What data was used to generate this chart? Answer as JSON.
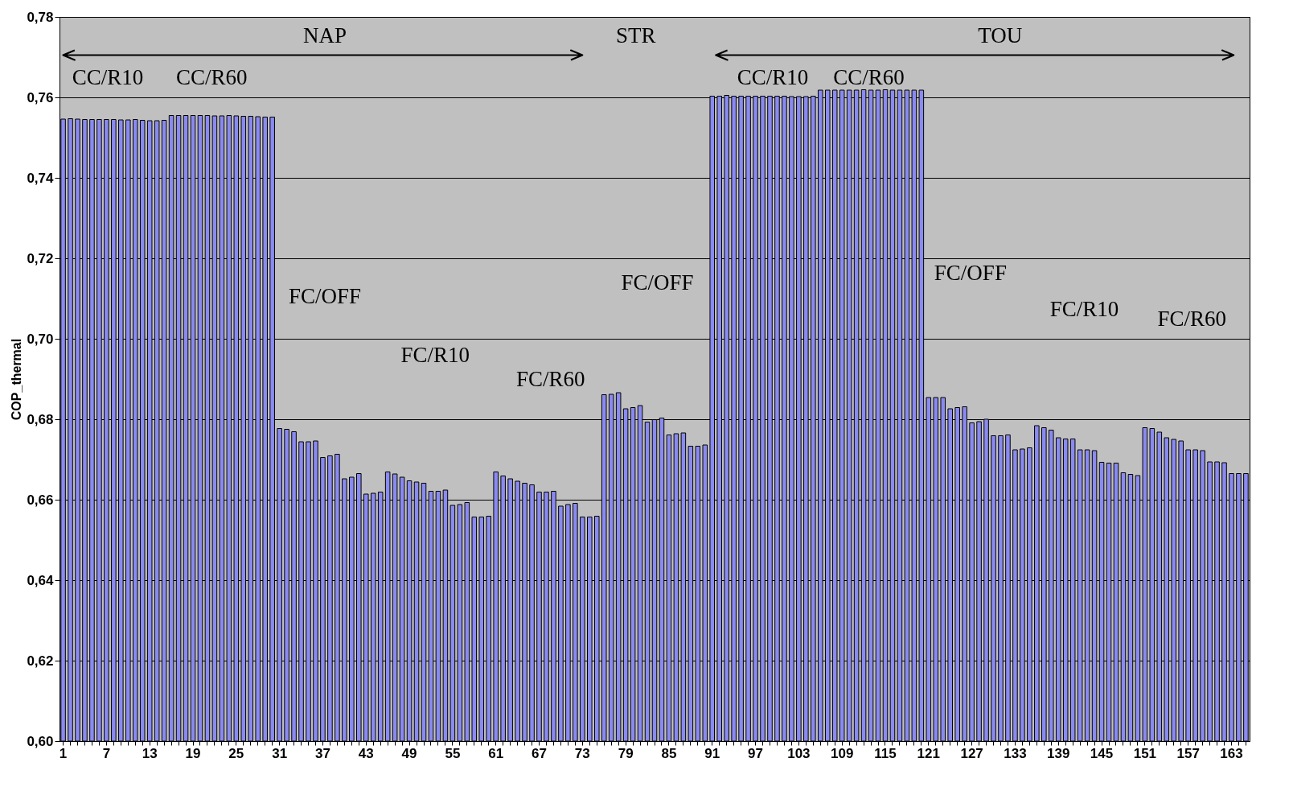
{
  "chart_data": {
    "type": "bar",
    "ylabel": "COP_thermal",
    "categories": [
      "1",
      null,
      null,
      null,
      null,
      null,
      "7",
      null,
      null,
      null,
      null,
      null,
      "13",
      null,
      null,
      null,
      null,
      null,
      "19",
      null,
      null,
      null,
      null,
      null,
      "25",
      null,
      null,
      null,
      null,
      null,
      "31",
      null,
      null,
      null,
      null,
      null,
      "37",
      null,
      null,
      null,
      null,
      null,
      "43",
      null,
      null,
      null,
      null,
      null,
      "49",
      null,
      null,
      null,
      null,
      null,
      "55",
      null,
      null,
      null,
      null,
      null,
      "61",
      null,
      null,
      null,
      null,
      null,
      "67",
      null,
      null,
      null,
      null,
      null,
      "73",
      null,
      null,
      null,
      null,
      null,
      "79",
      null,
      null,
      null,
      null,
      null,
      "85",
      null,
      null,
      null,
      null,
      null,
      "91",
      null,
      null,
      null,
      null,
      null,
      "97",
      null,
      null,
      null,
      null,
      null,
      "103",
      null,
      null,
      null,
      null,
      null,
      "109",
      null,
      null,
      null,
      null,
      null,
      "115",
      null,
      null,
      null,
      null,
      null,
      "121",
      null,
      null,
      null,
      null,
      null,
      "127",
      null,
      null,
      null,
      null,
      null,
      "133",
      null,
      null,
      null,
      null,
      null,
      "139",
      null,
      null,
      null,
      null,
      null,
      "145",
      null,
      null,
      null,
      null,
      null,
      "151",
      null,
      null,
      null,
      null,
      null,
      "157",
      null,
      null,
      null,
      null,
      null,
      "163",
      null,
      null
    ],
    "values": [
      0.7546,
      0.7547,
      0.7546,
      0.7545,
      0.7545,
      0.7545,
      0.7545,
      0.7545,
      0.7544,
      0.7544,
      0.7545,
      0.7543,
      0.7542,
      0.7542,
      0.7543,
      0.7555,
      0.7555,
      0.7555,
      0.7555,
      0.7555,
      0.7555,
      0.7554,
      0.7554,
      0.7555,
      0.7554,
      0.7553,
      0.7553,
      0.7552,
      0.7551,
      0.7551,
      0.6777,
      0.6775,
      0.6769,
      0.6744,
      0.6744,
      0.6746,
      0.6705,
      0.6709,
      0.6713,
      0.6652,
      0.6656,
      0.6665,
      0.6614,
      0.6616,
      0.6619,
      0.6669,
      0.6664,
      0.6656,
      0.6647,
      0.6644,
      0.6641,
      0.6621,
      0.6621,
      0.6624,
      0.6586,
      0.6588,
      0.6593,
      0.6557,
      0.6557,
      0.6559,
      0.6669,
      0.6659,
      0.6652,
      0.6646,
      0.6641,
      0.6637,
      0.6619,
      0.6619,
      0.6621,
      0.6584,
      0.6588,
      0.6591,
      0.6557,
      0.6557,
      0.6559,
      0.6861,
      0.6862,
      0.6866,
      0.6826,
      0.6829,
      0.6834,
      0.6793,
      0.6799,
      0.6803,
      0.6761,
      0.6764,
      0.6766,
      0.6733,
      0.6733,
      0.6736,
      0.7603,
      0.7603,
      0.7605,
      0.7603,
      0.7603,
      0.7603,
      0.7603,
      0.7603,
      0.7603,
      0.7603,
      0.7603,
      0.7602,
      0.7602,
      0.7602,
      0.7603,
      0.7618,
      0.7618,
      0.7618,
      0.7618,
      0.7618,
      0.7618,
      0.7619,
      0.7618,
      0.7618,
      0.7619,
      0.7618,
      0.7618,
      0.7618,
      0.7618,
      0.7618,
      0.6854,
      0.6854,
      0.6854,
      0.6826,
      0.6829,
      0.6831,
      0.6791,
      0.6794,
      0.68,
      0.6759,
      0.6759,
      0.6761,
      0.6724,
      0.6726,
      0.6729,
      0.6784,
      0.6779,
      0.6773,
      0.6754,
      0.6751,
      0.6751,
      0.6724,
      0.6724,
      0.6722,
      0.6693,
      0.6691,
      0.6691,
      0.6667,
      0.6663,
      0.666,
      0.6779,
      0.6777,
      0.6768,
      0.6754,
      0.675,
      0.6746,
      0.6724,
      0.6724,
      0.6722,
      0.6694,
      0.6694,
      0.6692,
      0.6665,
      0.6665,
      0.6665
    ],
    "color": "#8a8af0",
    "ylim": [
      0.6,
      0.78
    ],
    "yticks": [
      {
        "value": 0.6,
        "label": "0,60"
      },
      {
        "value": 0.62,
        "label": "0,62"
      },
      {
        "value": 0.64,
        "label": "0,64"
      },
      {
        "value": 0.66,
        "label": "0,66"
      },
      {
        "value": 0.68,
        "label": "0,68"
      },
      {
        "value": 0.7,
        "label": "0,70"
      },
      {
        "value": 0.72,
        "label": "0,72"
      },
      {
        "value": 0.74,
        "label": "0,74"
      },
      {
        "value": 0.76,
        "label": "0,76"
      },
      {
        "value": 0.78,
        "label": "0,78"
      }
    ],
    "grid": "y",
    "annotations": [
      "NAP",
      "STR",
      "TOU",
      "CC/R10",
      "CC/R60",
      "FC/OFF",
      "FC/R10",
      "FC/R60",
      "FC/OFF",
      "CC/R10",
      "CC/R60",
      "FC/OFF",
      "FC/R10",
      "FC/R60"
    ]
  }
}
